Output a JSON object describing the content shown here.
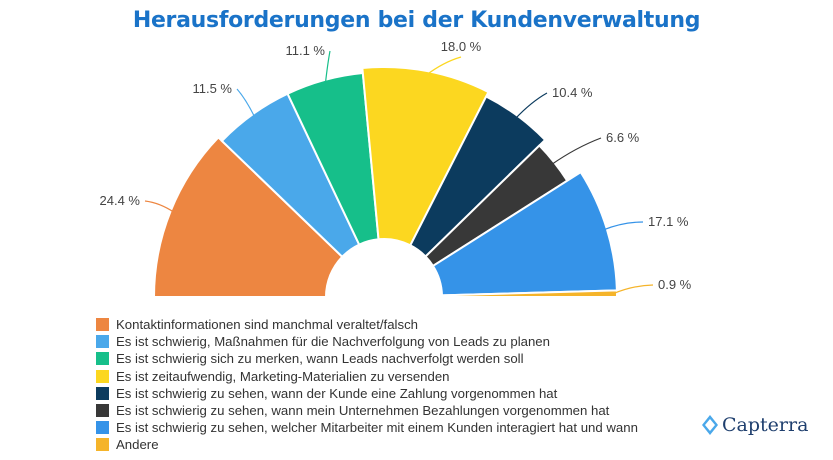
{
  "chart_data": {
    "type": "pie",
    "title": "Herausforderungen bei der Kundenverwaltung",
    "subtype": "semicircle donut",
    "series": [
      {
        "name": "Kontaktinformationen sind manchmal veraltet/falsch",
        "value": 24.4,
        "label": "24.4 %",
        "color": "#ed8641"
      },
      {
        "name": "Es ist schwierig, Maßnahmen für die Nachverfolgung von Leads zu planen",
        "value": 11.5,
        "label": "11.5 %",
        "color": "#4aa8ea"
      },
      {
        "name": "Es ist schwierig sich zu merken, wann Leads nachverfolgt werden soll",
        "value": 11.1,
        "label": "11.1 %",
        "color": "#16bf8a"
      },
      {
        "name": "Es ist zeitaufwendig, Marketing-Materialien zu versenden",
        "value": 18.0,
        "label": "18.0 %",
        "color": "#fcd720"
      },
      {
        "name": "Es ist schwierig zu sehen, wann der Kunde eine Zahlung vorgenommen hat",
        "value": 10.4,
        "label": "10.4 %",
        "color": "#0c3b5e"
      },
      {
        "name": "Es ist schwierig zu sehen, wann mein Unternehmen Bezahlungen vorgenommen hat",
        "value": 6.6,
        "label": "6.6 %",
        "color": "#383838"
      },
      {
        "name": "Es ist schwierig zu sehen, welcher Mitarbeiter mit einem Kunden interagiert hat und wann",
        "value": 17.1,
        "label": "17.1 %",
        "color": "#3593e8"
      },
      {
        "name": "Andere",
        "value": 0.9,
        "label": "0.9 %",
        "color": "#f5b42a"
      }
    ],
    "legend_position": "bottom-left"
  },
  "brand": {
    "name": "Capterra",
    "icon": "capterra-logo-icon",
    "color": "#1f3f6e"
  }
}
